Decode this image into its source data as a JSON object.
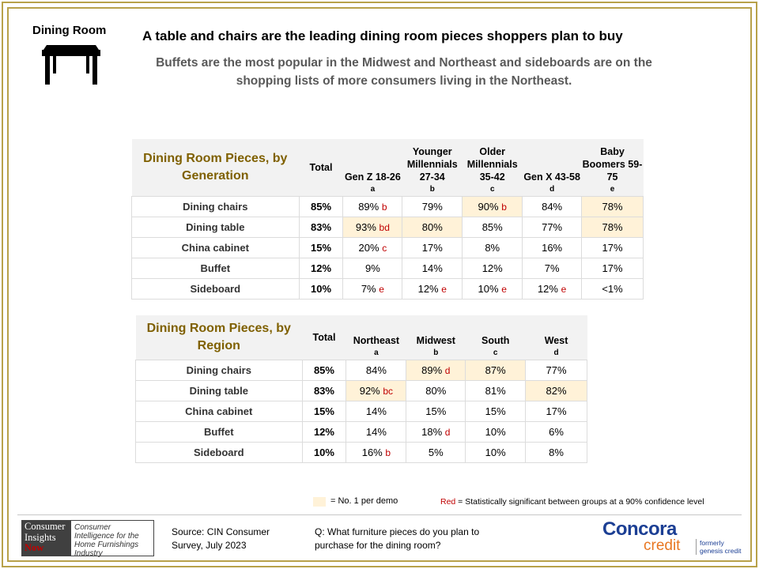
{
  "section_label": "Dining Room",
  "headline": "A table and chairs are the leading dining room pieces shoppers plan to buy",
  "subhead": "Buffets are the most popular in the Midwest and Northeast and sideboards are on the shopping lists of more consumers living in the Northeast.",
  "generation_table": {
    "title": "Dining Room Pieces, by Generation",
    "total_label": "Total",
    "columns": [
      {
        "name": "Gen Z 18-26",
        "letter": "a"
      },
      {
        "name": "Younger Millennials 27-34",
        "letter": "b"
      },
      {
        "name": "Older Millennials 35-42",
        "letter": "c"
      },
      {
        "name": "Gen X 43-58",
        "letter": "d"
      },
      {
        "name": "Baby Boomers 59-75",
        "letter": "e"
      }
    ],
    "rows": [
      {
        "label": "Dining chairs",
        "total": "85%",
        "cells": [
          {
            "v": "89%",
            "sig": "b"
          },
          {
            "v": "79%",
            "sig": ""
          },
          {
            "v": "90%",
            "sig": "b",
            "hl": true
          },
          {
            "v": "84%",
            "sig": ""
          },
          {
            "v": "78%",
            "sig": "",
            "hl": true
          }
        ]
      },
      {
        "label": "Dining table",
        "total": "83%",
        "cells": [
          {
            "v": "93%",
            "sig": "bd",
            "hl": true
          },
          {
            "v": "80%",
            "sig": "",
            "hl": true
          },
          {
            "v": "85%",
            "sig": ""
          },
          {
            "v": "77%",
            "sig": ""
          },
          {
            "v": "78%",
            "sig": "",
            "hl": true
          }
        ]
      },
      {
        "label": "China cabinet",
        "total": "15%",
        "cells": [
          {
            "v": "20%",
            "sig": "c"
          },
          {
            "v": "17%",
            "sig": ""
          },
          {
            "v": "8%",
            "sig": ""
          },
          {
            "v": "16%",
            "sig": ""
          },
          {
            "v": "17%",
            "sig": ""
          }
        ]
      },
      {
        "label": "Buffet",
        "total": "12%",
        "cells": [
          {
            "v": "9%",
            "sig": ""
          },
          {
            "v": "14%",
            "sig": ""
          },
          {
            "v": "12%",
            "sig": ""
          },
          {
            "v": "7%",
            "sig": ""
          },
          {
            "v": "17%",
            "sig": ""
          }
        ]
      },
      {
        "label": "Sideboard",
        "total": "10%",
        "cells": [
          {
            "v": "7%",
            "sig": "e"
          },
          {
            "v": "12%",
            "sig": "e"
          },
          {
            "v": "10%",
            "sig": "e"
          },
          {
            "v": "12%",
            "sig": "e"
          },
          {
            "v": "<1%",
            "sig": ""
          }
        ]
      }
    ]
  },
  "region_table": {
    "title": "Dining Room Pieces, by Region",
    "total_label": "Total",
    "columns": [
      {
        "name": "Northeast",
        "letter": "a"
      },
      {
        "name": "Midwest",
        "letter": "b"
      },
      {
        "name": "South",
        "letter": "c"
      },
      {
        "name": "West",
        "letter": "d"
      }
    ],
    "rows": [
      {
        "label": "Dining chairs",
        "total": "85%",
        "cells": [
          {
            "v": "84%",
            "sig": ""
          },
          {
            "v": "89%",
            "sig": "d",
            "hl": true
          },
          {
            "v": "87%",
            "sig": "",
            "hl": true
          },
          {
            "v": "77%",
            "sig": ""
          }
        ]
      },
      {
        "label": "Dining table",
        "total": "83%",
        "cells": [
          {
            "v": "92%",
            "sig": "bc",
            "hl": true
          },
          {
            "v": "80%",
            "sig": ""
          },
          {
            "v": "81%",
            "sig": ""
          },
          {
            "v": "82%",
            "sig": "",
            "hl": true
          }
        ]
      },
      {
        "label": "China cabinet",
        "total": "15%",
        "cells": [
          {
            "v": "14%",
            "sig": ""
          },
          {
            "v": "15%",
            "sig": ""
          },
          {
            "v": "15%",
            "sig": ""
          },
          {
            "v": "17%",
            "sig": ""
          }
        ]
      },
      {
        "label": "Buffet",
        "total": "12%",
        "cells": [
          {
            "v": "14%",
            "sig": ""
          },
          {
            "v": "18%",
            "sig": "d"
          },
          {
            "v": "10%",
            "sig": ""
          },
          {
            "v": "6%",
            "sig": ""
          }
        ]
      },
      {
        "label": "Sideboard",
        "total": "10%",
        "cells": [
          {
            "v": "16%",
            "sig": "b"
          },
          {
            "v": "5%",
            "sig": ""
          },
          {
            "v": "10%",
            "sig": ""
          },
          {
            "v": "8%",
            "sig": ""
          }
        ]
      }
    ]
  },
  "legend": {
    "highlight_text": "= No. 1 per demo",
    "red_word": "Red",
    "sig_text": " = Statistically significant between groups at a 90% confidence level"
  },
  "footer": {
    "cin_logo_lines": [
      "Consumer",
      "Insights",
      "Now"
    ],
    "cin_tagline": "Consumer Intelligence for the Home Furnishings Industry",
    "source": "Source: CIN Consumer Survey, July 2023",
    "question": "Q: What furniture pieces do you plan to purchase for the dining room?",
    "concora_word": "Concora",
    "concora_credit": "credit",
    "formerly_line1": "formerly",
    "formerly_line2": "genesis credit"
  },
  "colors": {
    "frame": "#b8a14a",
    "title_gold": "#7f6000",
    "highlight": "#fff2d8",
    "significance_red": "#c00000",
    "concora_blue": "#1c3f94",
    "concora_orange": "#e87722"
  }
}
